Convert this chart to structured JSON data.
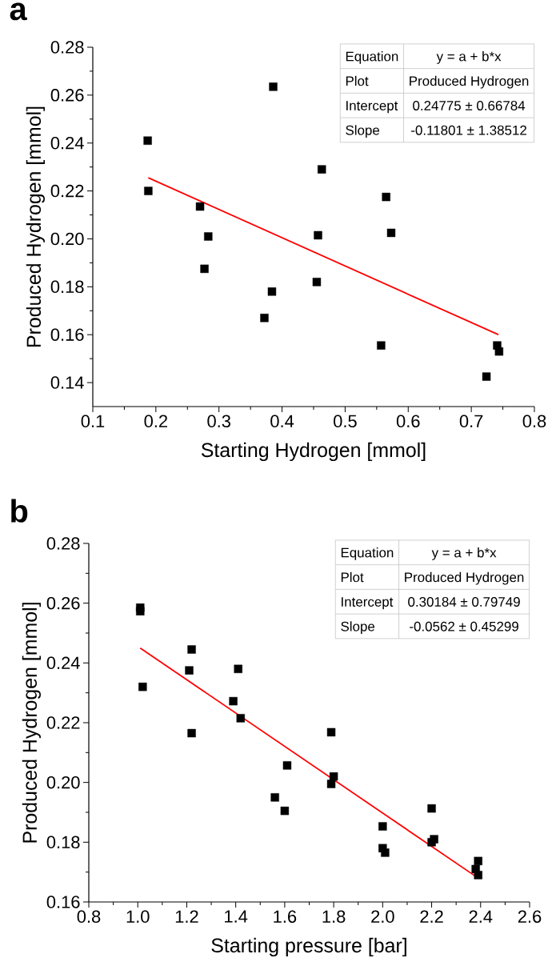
{
  "chart_data": [
    {
      "type": "scatter",
      "title": "a",
      "xlabel": "Starting Hydrogen [mmol]",
      "ylabel": "Produced Hydrogen [mmol]",
      "xlim": [
        0.1,
        0.8
      ],
      "ylim": [
        0.13,
        0.28
      ],
      "xticks": [
        0.1,
        0.2,
        0.3,
        0.4,
        0.5,
        0.6,
        0.7,
        0.8
      ],
      "yticks": [
        0.14,
        0.16,
        0.18,
        {
          "value": 0.2,
          "label": "0.20"
        },
        0.22,
        0.24,
        0.26,
        0.28
      ],
      "annotations": [
        "Equation",
        "y = a + b*x",
        "Plot",
        "Produced Hydrogen",
        "Intercept",
        "0.24775 ± 0.66784",
        "Slope",
        "-0.11801 ± 1.38512"
      ],
      "series": [
        {
          "color": "#000000",
          "marker": "square",
          "x": [
            0.187,
            0.188,
            0.27,
            0.283,
            0.277,
            0.372,
            0.384,
            0.386,
            0.455,
            0.457,
            0.463,
            0.557,
            0.565,
            0.573,
            0.724,
            0.741,
            0.744
          ],
          "values": [
            0.241,
            0.22,
            0.2135,
            0.201,
            0.1875,
            0.167,
            0.178,
            0.2635,
            0.182,
            0.2015,
            0.229,
            0.1555,
            0.2175,
            0.2025,
            0.1425,
            0.1555,
            0.153
          ]
        },
        {
          "type": "line",
          "color": "#ff0000",
          "marker": "none",
          "line_style": "solid",
          "x": [
            0.188,
            0.743
          ],
          "values": [
            0.2255,
            0.16
          ]
        }
      ]
    },
    {
      "type": "scatter",
      "title": "b",
      "xlabel": "Starting pressure [bar]",
      "ylabel": "Produced Hydrogen [mmol]",
      "xlim": [
        0.8,
        2.6
      ],
      "ylim": [
        0.16,
        0.28
      ],
      "xticks": [
        0.8,
        {
          "value": 1.0,
          "label": "1.0"
        },
        1.2,
        1.4,
        1.6,
        1.8,
        {
          "value": 2.0,
          "label": "2.0"
        },
        2.2,
        2.4,
        2.6
      ],
      "yticks": [
        0.16,
        0.18,
        {
          "value": 0.2,
          "label": "0.20"
        },
        0.22,
        0.24,
        0.26,
        0.28
      ],
      "annotations": [
        "Equation",
        "y = a + b*x",
        "Plot",
        "Produced Hydrogen",
        "Intercept",
        "0.30184 ± 0.79749",
        "Slope",
        "-0.0562 ± 0.45299"
      ],
      "series": [
        {
          "color": "#000000",
          "marker": "square",
          "x": [
            1.01,
            1.01,
            1.02,
            1.21,
            1.22,
            1.22,
            1.39,
            1.41,
            1.42,
            1.56,
            1.6,
            1.61,
            1.79,
            1.79,
            1.8,
            2.0,
            2.0,
            2.01,
            2.2,
            2.2,
            2.21,
            2.38,
            2.39,
            2.39
          ],
          "values": [
            0.2585,
            0.2573,
            0.232,
            0.2375,
            0.2445,
            0.2165,
            0.2272,
            0.238,
            0.2215,
            0.195,
            0.1905,
            0.2057,
            0.2168,
            0.1995,
            0.202,
            0.1853,
            0.178,
            0.1765,
            0.1913,
            0.18,
            0.181,
            0.171,
            0.1737,
            0.169
          ]
        },
        {
          "type": "line",
          "color": "#ff0000",
          "marker": "none",
          "line_style": "solid",
          "x": [
            1.01,
            2.39
          ],
          "values": [
            0.245,
            0.168
          ]
        }
      ]
    }
  ]
}
